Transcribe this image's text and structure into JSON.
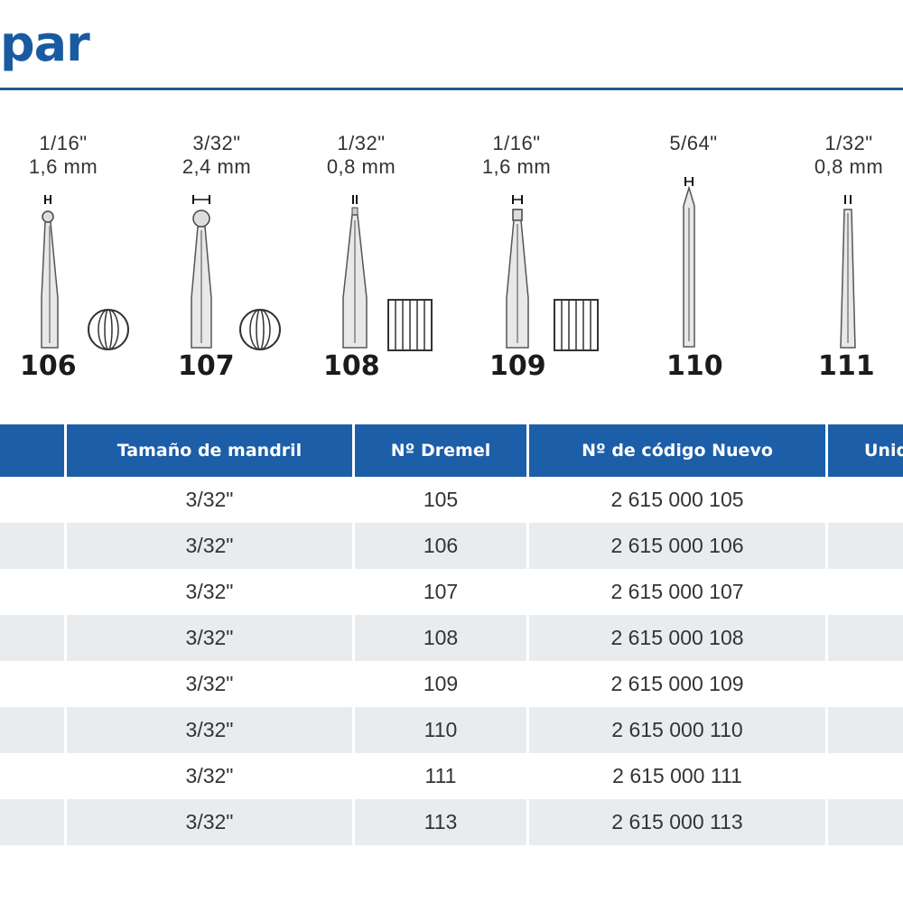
{
  "title": "par",
  "bits": [
    {
      "number": "106",
      "size_in": "1/16\"",
      "size_mm": "1,6 mm",
      "head": "ball"
    },
    {
      "number": "107",
      "size_in": "3/32\"",
      "size_mm": "2,4 mm",
      "head": "ball"
    },
    {
      "number": "108",
      "size_in": "1/32\"",
      "size_mm": "0,8 mm",
      "head": "cylinder"
    },
    {
      "number": "109",
      "size_in": "1/16\"",
      "size_mm": "1,6 mm",
      "head": "cylinder"
    },
    {
      "number": "110",
      "size_in": "5/64\"",
      "size_mm": "",
      "head": "pointed"
    },
    {
      "number": "111",
      "size_in": "1/32\"",
      "size_mm": "0,8 mm",
      "head": "straight"
    }
  ],
  "table": {
    "headers": {
      "chuck": "Tamaño de mandril",
      "dremel": "Nº Dremel",
      "code": "Nº de código Nuevo",
      "units": "Unid"
    },
    "rows": [
      {
        "chuck": "3/32\"",
        "dremel": "105",
        "code": "2 615 000 105"
      },
      {
        "chuck": "3/32\"",
        "dremel": "106",
        "code": "2 615 000 106"
      },
      {
        "chuck": "3/32\"",
        "dremel": "107",
        "code": "2 615 000 107"
      },
      {
        "chuck": "3/32\"",
        "dremel": "108",
        "code": "2 615 000 108"
      },
      {
        "chuck": "3/32\"",
        "dremel": "109",
        "code": "2 615 000 109"
      },
      {
        "chuck": "3/32\"",
        "dremel": "110",
        "code": "2 615 000 110"
      },
      {
        "chuck": "3/32\"",
        "dremel": "111",
        "code": "2 615 000 111"
      },
      {
        "chuck": "3/32\"",
        "dremel": "113",
        "code": "2 615 000 113"
      }
    ]
  }
}
